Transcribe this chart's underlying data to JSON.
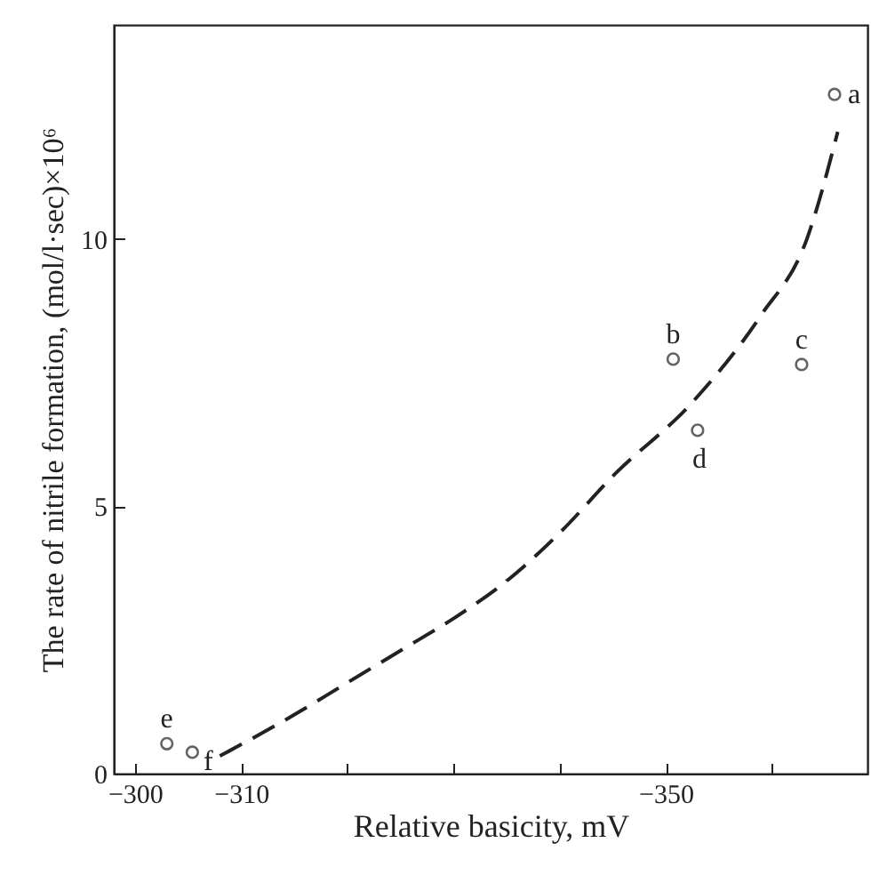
{
  "chart_data": {
    "type": "scatter",
    "xlabel": "Relative basicity, mV",
    "ylabel": "The rate of nitrile formation, (mol/l·sec)×10⁶",
    "xlim": [
      -298,
      -369
    ],
    "ylim": [
      0,
      14
    ],
    "xticks": [
      -300,
      -310,
      {
        "value": -320,
        "label": null
      },
      {
        "value": -330,
        "label": null
      },
      {
        "value": -340,
        "label": null
      },
      -350,
      {
        "value": -360,
        "label": null
      }
    ],
    "yticks": [
      0,
      5,
      10
    ],
    "grid": false,
    "series": [
      {
        "marker": "circle",
        "color": "#222222",
        "x": [
          -365.9,
          -350.7,
          -362.8,
          -353.0,
          -303.0,
          -305.4
        ],
        "values": [
          12.7,
          7.75,
          7.65,
          6.42,
          0.56,
          0.4
        ]
      },
      {
        "type": "line",
        "line_style": "dashed",
        "color": "#222222",
        "x": [
          -308,
          -315,
          -320,
          -325,
          -330,
          -335,
          -340,
          -345.2,
          -352.3,
          -358.9,
          -363.3,
          -366.2
        ],
        "values": [
          0.33,
          1.1,
          1.7,
          2.3,
          2.9,
          3.6,
          4.5,
          5.6,
          6.9,
          8.55,
          10.0,
          12.0
        ]
      }
    ],
    "annotations": [
      {
        "text": "a",
        "x": -365.9,
        "y": 12.7
      },
      {
        "text": "b",
        "x": -350.7,
        "y": 7.75
      },
      {
        "text": "c",
        "x": -362.8,
        "y": 7.65
      },
      {
        "text": "d",
        "x": -353.0,
        "y": 6.42
      },
      {
        "text": "e",
        "x": -303.0,
        "y": 0.56
      },
      {
        "text": "f",
        "x": -305.4,
        "y": 0.4
      }
    ]
  }
}
